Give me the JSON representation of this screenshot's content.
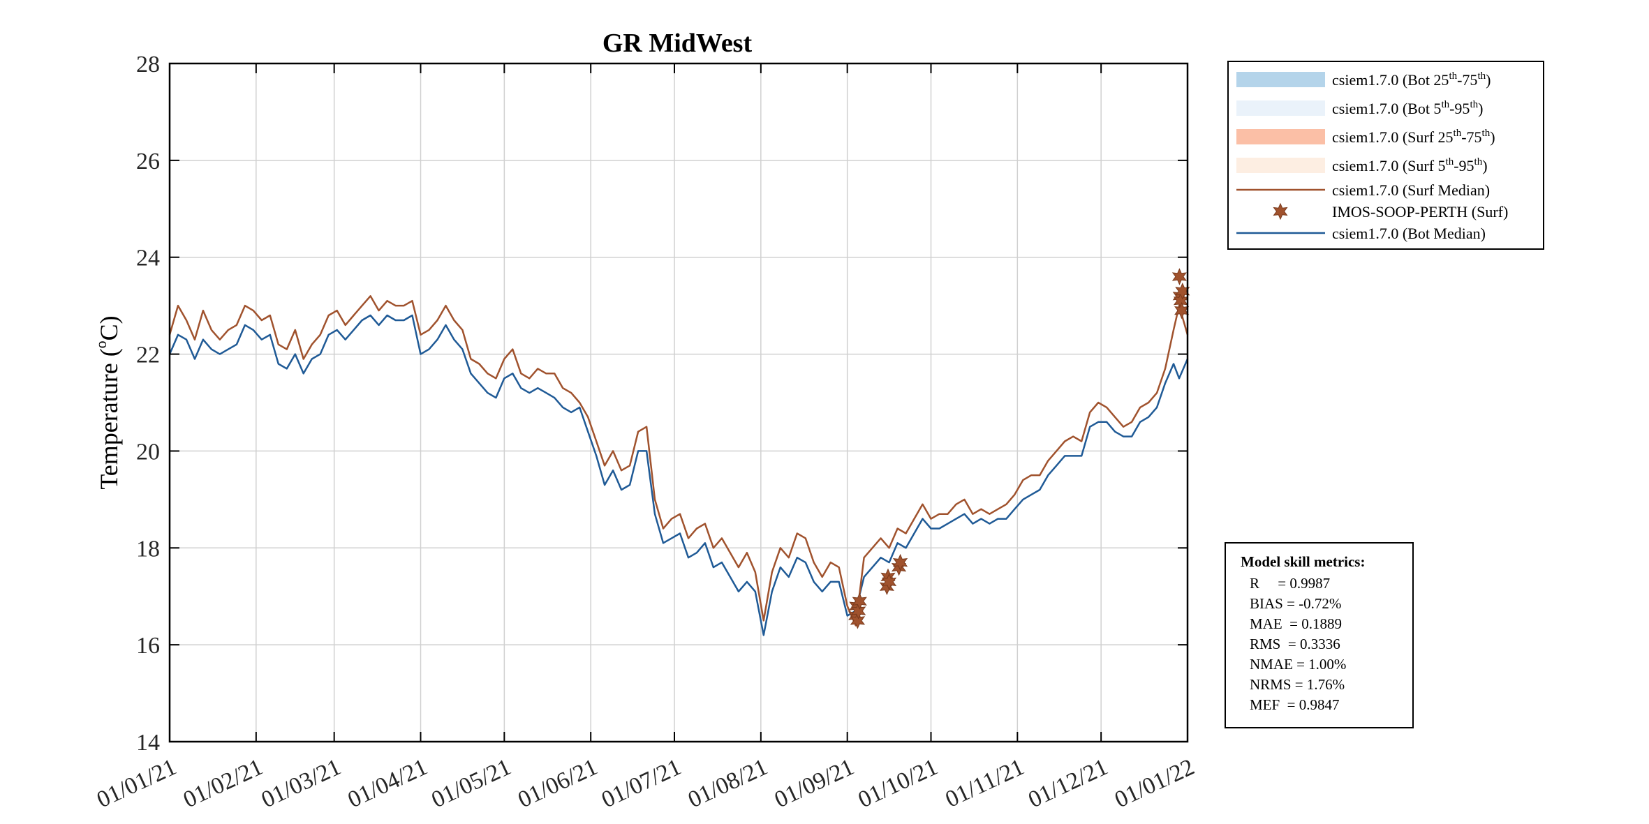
{
  "chart_data": {
    "type": "line",
    "title": "GR MidWest",
    "ylabel": "Temperature (°C)",
    "ylabel_main": "Temperature (",
    "ylabel_unit": "C)",
    "ylabel_deg": "o",
    "ylim": [
      14,
      28
    ],
    "yticks": [
      14,
      16,
      18,
      20,
      22,
      24,
      26,
      28
    ],
    "xlim_days": [
      0,
      365
    ],
    "xtick_days": [
      0,
      31,
      59,
      90,
      120,
      151,
      181,
      212,
      243,
      273,
      304,
      334,
      365
    ],
    "xtick_labels": [
      "01/01/21",
      "01/02/21",
      "01/03/21",
      "01/04/21",
      "01/05/21",
      "01/06/21",
      "01/07/21",
      "01/08/21",
      "01/09/21",
      "01/10/21",
      "01/11/21",
      "01/12/21",
      "01/01/22"
    ],
    "grid": true,
    "colors": {
      "surf_median": "#a0522d",
      "bot_median": "#1f5a96",
      "bot_iqr": "#b4d4ea",
      "bot_p90": "#eaf2fa",
      "surf_iqr": "#fbbfa6",
      "surf_p90": "#fdeee2",
      "obs": "#a0522d"
    },
    "series": [
      {
        "name": "csiem1.7.0 (Surf Median)",
        "day": [
          0,
          3,
          6,
          9,
          12,
          15,
          18,
          21,
          24,
          27,
          30,
          33,
          36,
          39,
          42,
          45,
          48,
          51,
          54,
          57,
          60,
          63,
          66,
          69,
          72,
          75,
          78,
          81,
          84,
          87,
          90,
          93,
          96,
          99,
          102,
          105,
          108,
          111,
          114,
          117,
          120,
          123,
          126,
          129,
          132,
          135,
          138,
          141,
          144,
          147,
          150,
          153,
          156,
          159,
          162,
          165,
          168,
          171,
          174,
          177,
          180,
          183,
          186,
          189,
          192,
          195,
          198,
          201,
          204,
          207,
          210,
          213,
          216,
          219,
          222,
          225,
          228,
          231,
          234,
          237,
          240,
          243,
          246,
          249,
          252,
          255,
          258,
          261,
          264,
          267,
          270,
          273,
          276,
          279,
          282,
          285,
          288,
          291,
          294,
          297,
          300,
          303,
          306,
          309,
          312,
          315,
          318,
          321,
          324,
          327,
          330,
          333,
          336,
          339,
          342,
          345,
          348,
          351,
          354,
          357,
          360,
          362,
          365
        ],
        "values": [
          22.4,
          23.0,
          22.7,
          22.3,
          22.9,
          22.5,
          22.3,
          22.5,
          22.6,
          23.0,
          22.9,
          22.7,
          22.8,
          22.2,
          22.1,
          22.5,
          21.9,
          22.2,
          22.4,
          22.8,
          22.9,
          22.6,
          22.8,
          23.0,
          23.2,
          22.9,
          23.1,
          23.0,
          23.0,
          23.1,
          22.4,
          22.5,
          22.7,
          23.0,
          22.7,
          22.5,
          21.9,
          21.8,
          21.6,
          21.5,
          21.9,
          22.1,
          21.6,
          21.5,
          21.7,
          21.6,
          21.6,
          21.3,
          21.2,
          21.0,
          20.7,
          20.2,
          19.7,
          20.0,
          19.6,
          19.7,
          20.4,
          20.5,
          19.0,
          18.4,
          18.6,
          18.7,
          18.2,
          18.4,
          18.5,
          18.0,
          18.2,
          17.9,
          17.6,
          17.9,
          17.5,
          16.5,
          17.5,
          18.0,
          17.8,
          18.3,
          18.2,
          17.7,
          17.4,
          17.7,
          17.6,
          16.8,
          16.4,
          17.8,
          18.0,
          18.2,
          18.0,
          18.4,
          18.3,
          18.6,
          18.9,
          18.6,
          18.7,
          18.7,
          18.9,
          19.0,
          18.7,
          18.8,
          18.7,
          18.8,
          18.9,
          19.1,
          19.4,
          19.5,
          19.5,
          19.8,
          20.0,
          20.2,
          20.3,
          20.2,
          20.8,
          21.0,
          20.9,
          20.7,
          20.5,
          20.6,
          20.9,
          21.0,
          21.2,
          21.7,
          22.5,
          23.0,
          22.4
        ]
      },
      {
        "name": "csiem1.7.0 (Bot Median)",
        "day": [
          0,
          3,
          6,
          9,
          12,
          15,
          18,
          21,
          24,
          27,
          30,
          33,
          36,
          39,
          42,
          45,
          48,
          51,
          54,
          57,
          60,
          63,
          66,
          69,
          72,
          75,
          78,
          81,
          84,
          87,
          90,
          93,
          96,
          99,
          102,
          105,
          108,
          111,
          114,
          117,
          120,
          123,
          126,
          129,
          132,
          135,
          138,
          141,
          144,
          147,
          150,
          153,
          156,
          159,
          162,
          165,
          168,
          171,
          174,
          177,
          180,
          183,
          186,
          189,
          192,
          195,
          198,
          201,
          204,
          207,
          210,
          213,
          216,
          219,
          222,
          225,
          228,
          231,
          234,
          237,
          240,
          243,
          246,
          249,
          252,
          255,
          258,
          261,
          264,
          267,
          270,
          273,
          276,
          279,
          282,
          285,
          288,
          291,
          294,
          297,
          300,
          303,
          306,
          309,
          312,
          315,
          318,
          321,
          324,
          327,
          330,
          333,
          336,
          339,
          342,
          345,
          348,
          351,
          354,
          357,
          360,
          362,
          365
        ],
        "values": [
          22.0,
          22.4,
          22.3,
          21.9,
          22.3,
          22.1,
          22.0,
          22.1,
          22.2,
          22.6,
          22.5,
          22.3,
          22.4,
          21.8,
          21.7,
          22.0,
          21.6,
          21.9,
          22.0,
          22.4,
          22.5,
          22.3,
          22.5,
          22.7,
          22.8,
          22.6,
          22.8,
          22.7,
          22.7,
          22.8,
          22.0,
          22.1,
          22.3,
          22.6,
          22.3,
          22.1,
          21.6,
          21.4,
          21.2,
          21.1,
          21.5,
          21.6,
          21.3,
          21.2,
          21.3,
          21.2,
          21.1,
          20.9,
          20.8,
          20.9,
          20.4,
          19.9,
          19.3,
          19.6,
          19.2,
          19.3,
          20.0,
          20.0,
          18.7,
          18.1,
          18.2,
          18.3,
          17.8,
          17.9,
          18.1,
          17.6,
          17.7,
          17.4,
          17.1,
          17.3,
          17.1,
          16.2,
          17.1,
          17.6,
          17.4,
          17.8,
          17.7,
          17.3,
          17.1,
          17.3,
          17.3,
          16.6,
          16.7,
          17.4,
          17.6,
          17.8,
          17.7,
          18.1,
          18.0,
          18.3,
          18.6,
          18.4,
          18.4,
          18.5,
          18.6,
          18.7,
          18.5,
          18.6,
          18.5,
          18.6,
          18.6,
          18.8,
          19.0,
          19.1,
          19.2,
          19.5,
          19.7,
          19.9,
          19.9,
          19.9,
          20.5,
          20.6,
          20.6,
          20.4,
          20.3,
          20.3,
          20.6,
          20.7,
          20.9,
          21.4,
          21.8,
          21.5,
          21.9
        ]
      }
    ],
    "observations": {
      "name": "IMOS-SOOP-PERTH (Surf)",
      "day": [
        246.0,
        246.3,
        246.7,
        247.0,
        247.4,
        257.2,
        257.6,
        258.0,
        261.5,
        262.0,
        362.1,
        362.3,
        362.6,
        362.9,
        363.2
      ],
      "values": [
        16.6,
        16.8,
        16.5,
        16.7,
        16.9,
        17.2,
        17.4,
        17.3,
        17.6,
        17.7,
        23.6,
        23.2,
        23.1,
        22.9,
        23.3
      ]
    },
    "legend": {
      "position": "top-right outside",
      "items": [
        {
          "label": "csiem1.7.0 (Bot 25",
          "sup1": "th",
          "mid": "-75",
          "sup2": "th",
          "end": ")",
          "swatch": "bot_iqr",
          "kind": "patch"
        },
        {
          "label": "csiem1.7.0 (Bot 5",
          "sup1": "th",
          "mid": "-95",
          "sup2": "th",
          "end": ")",
          "swatch": "bot_p90",
          "kind": "patch"
        },
        {
          "label": "csiem1.7.0 (Surf 25",
          "sup1": "th",
          "mid": "-75",
          "sup2": "th",
          "end": ")",
          "swatch": "surf_iqr",
          "kind": "patch"
        },
        {
          "label": "csiem1.7.0 (Surf 5",
          "sup1": "th",
          "mid": "-95",
          "sup2": "th",
          "end": ")",
          "swatch": "surf_p90",
          "kind": "patch"
        },
        {
          "label": "csiem1.7.0 (Surf Median)",
          "swatch": "surf_median",
          "kind": "line"
        },
        {
          "label": "IMOS-SOOP-PERTH (Surf)",
          "swatch": "obs",
          "kind": "marker"
        },
        {
          "label": "csiem1.7.0 (Bot Median)",
          "swatch": "bot_median",
          "kind": "line"
        }
      ]
    },
    "metrics": {
      "heading": "Model skill metrics:",
      "lines": [
        "R     = 0.9987",
        "BIAS = -0.72%",
        "MAE  = 0.1889",
        "RMS  = 0.3336",
        "NMAE = 1.00%",
        "NRMS = 1.76%",
        "MEF  = 0.9847"
      ]
    }
  }
}
